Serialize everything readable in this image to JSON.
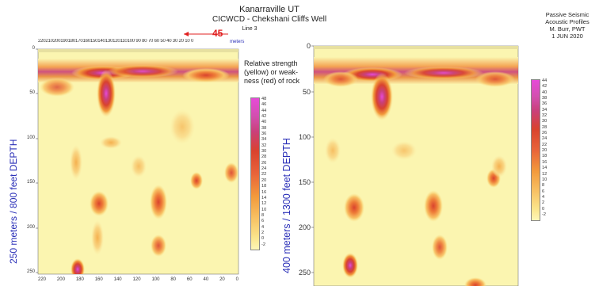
{
  "header": {
    "title": "Kanarraville UT",
    "subtitle": "CICWCD - Chekshani Cliffs Well",
    "line_label": "Line 3",
    "marker_value": "45",
    "top_units": "meters"
  },
  "side_note": {
    "lines": [
      "Passive Seismic",
      "Acoustic Profiles",
      "M. Burr, PWT",
      "1 JUN 2020"
    ]
  },
  "legend_note": "Relative strength (yellow) or weak-ness (red) of rock",
  "left_panel": {
    "ylabel": "250 meters / 800 feet DEPTH",
    "y_ticks": [
      "0",
      "50",
      "100",
      "150",
      "200",
      "250"
    ],
    "x_ticks_bottom": [
      "220",
      "200",
      "180",
      "160",
      "140",
      "120",
      "100",
      "80",
      "60",
      "40",
      "20",
      "0"
    ],
    "x_ticks_top": "220210200190180170160150140130120110100 90 80 70 60 50 40 30 20 10 0",
    "colorbar_labels": [
      "48",
      "46",
      "44",
      "42",
      "40",
      "38",
      "36",
      "34",
      "32",
      "30",
      "28",
      "26",
      "24",
      "22",
      "20",
      "18",
      "16",
      "14",
      "12",
      "10",
      "8",
      "6",
      "4",
      "2",
      "0",
      "-2"
    ]
  },
  "right_panel": {
    "ylabel": "400 meters / 1300 feet DEPTH",
    "y_ticks": [
      "0",
      "50",
      "100",
      "150",
      "200",
      "250"
    ],
    "colorbar_labels": [
      "44",
      "42",
      "40",
      "38",
      "36",
      "34",
      "32",
      "30",
      "28",
      "26",
      "24",
      "22",
      "20",
      "18",
      "16",
      "14",
      "12",
      "10",
      "8",
      "6",
      "4",
      "2",
      "0",
      "-2"
    ]
  },
  "colors": {
    "background_field": "#fbf5b0",
    "weak": "#d9432e",
    "strong_peak": "#e74ad8",
    "label_blue": "#2a2fb8",
    "marker_red": "#e02020"
  }
}
